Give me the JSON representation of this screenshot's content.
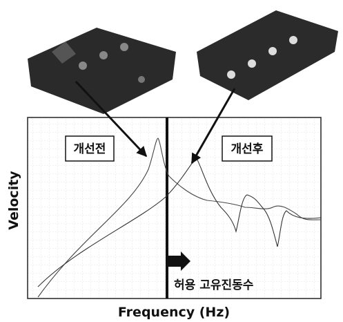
{
  "labels": {
    "before": "개선전",
    "after": "개선후",
    "y_axis": "Velocity",
    "x_axis": "Frequency (Hz)",
    "limit": "허용 고유진동수"
  }
}
